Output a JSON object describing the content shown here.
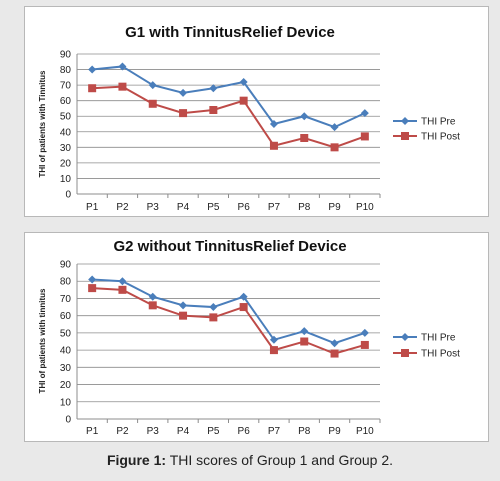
{
  "caption": {
    "label": "Figure 1:",
    "text": "THI scores of Group 1 and Group 2."
  },
  "chart_data": [
    {
      "type": "line",
      "title": "G1 with TinnitusRelief Device",
      "xlabel": "",
      "ylabel": "THI of patients with Tinnitus",
      "categories": [
        "P1",
        "P2",
        "P3",
        "P4",
        "P5",
        "P6",
        "P7",
        "P8",
        "P9",
        "P10"
      ],
      "ylim": [
        0,
        90
      ],
      "yticks": [
        0,
        10,
        20,
        30,
        40,
        50,
        60,
        70,
        80,
        90
      ],
      "grid": true,
      "legend": "right",
      "series": [
        {
          "name": "THI Pre",
          "color": "#4a7ebb",
          "marker": "diamond",
          "values": [
            80,
            82,
            70,
            65,
            68,
            72,
            45,
            50,
            43,
            52
          ]
        },
        {
          "name": "THI Post",
          "color": "#be4b48",
          "marker": "square",
          "values": [
            68,
            69,
            58,
            52,
            54,
            60,
            31,
            36,
            30,
            37
          ]
        }
      ]
    },
    {
      "type": "line",
      "title": "G2 without TinnitusRelief Device",
      "xlabel": "",
      "ylabel": "THI of patients with tinnitus",
      "categories": [
        "P1",
        "P2",
        "P3",
        "P4",
        "P5",
        "P6",
        "P7",
        "P8",
        "P9",
        "P10"
      ],
      "ylim": [
        0,
        90
      ],
      "yticks": [
        0,
        10,
        20,
        30,
        40,
        50,
        60,
        70,
        80,
        90
      ],
      "grid": true,
      "legend": "right",
      "series": [
        {
          "name": "THI Pre",
          "color": "#4a7ebb",
          "marker": "diamond",
          "values": [
            81,
            80,
            71,
            66,
            65,
            71,
            46,
            51,
            44,
            50
          ]
        },
        {
          "name": "THI Post",
          "color": "#be4b48",
          "marker": "square",
          "values": [
            76,
            75,
            66,
            60,
            59,
            65,
            40,
            45,
            38,
            43
          ]
        }
      ]
    }
  ]
}
